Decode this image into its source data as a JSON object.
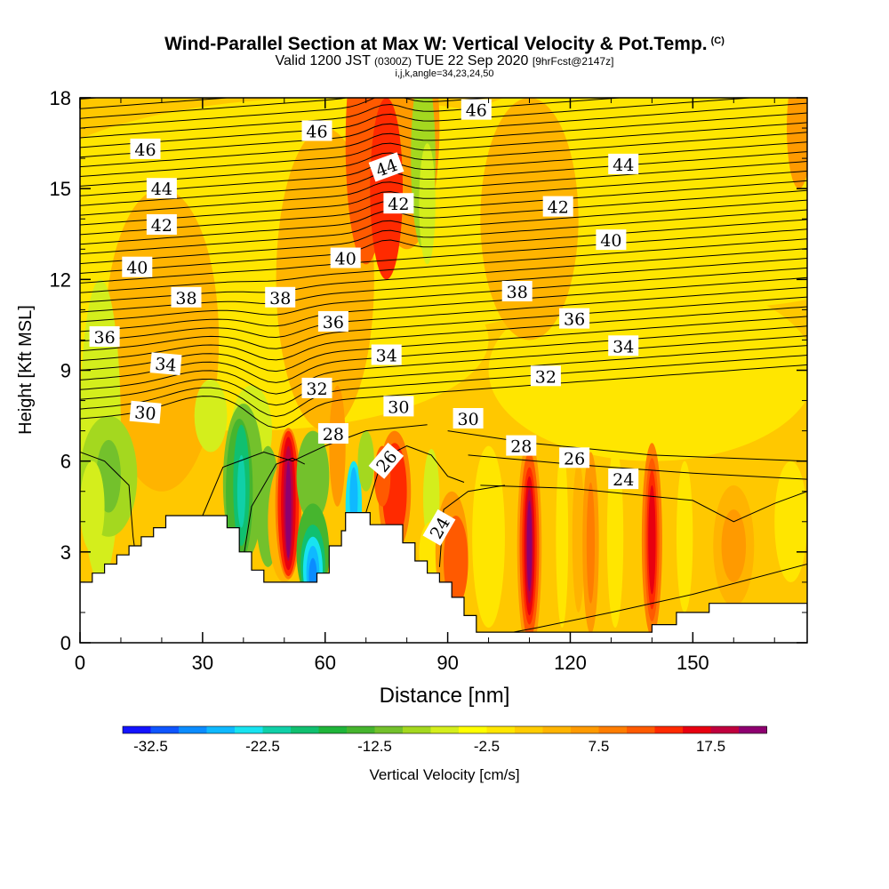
{
  "header": {
    "title": "Wind-Parallel Section at Max W: Vertical Velocity & Pot.Temp.",
    "copyright": "(C)",
    "valid_prefix": "Valid 1200 JST",
    "valid_utc": "(0300Z)",
    "valid_date": "TUE 22 Sep 2020",
    "forecast": "[9hrFcst@2147z]",
    "indices": "i,j,k,angle=34,23,24,50"
  },
  "chart_data": {
    "type": "contour-section",
    "xlabel": "Distance [nm]",
    "ylabel": "Height [Kft MSL]",
    "xlim": [
      0,
      178
    ],
    "ylim": [
      0,
      18
    ],
    "x_ticks": [
      0,
      30,
      60,
      90,
      120,
      150
    ],
    "y_ticks": [
      0,
      3,
      6,
      9,
      12,
      15,
      18
    ],
    "colorbar": {
      "label": "Vertical Velocity [cm/s]",
      "tick_labels": [
        "-32.5",
        "-22.5",
        "-12.5",
        "-2.5",
        "7.5",
        "17.5"
      ],
      "tick_values": [
        -32.5,
        -22.5,
        -12.5,
        -2.5,
        7.5,
        17.5
      ],
      "range": [
        -35,
        22.5
      ],
      "step": 2.5,
      "colors": [
        "#1414ff",
        "#0f55ff",
        "#0b8cff",
        "#0fb9ff",
        "#18e3f0",
        "#10d0a8",
        "#10c070",
        "#1fb53a",
        "#46b52e",
        "#73c12c",
        "#a4d81f",
        "#d4ee1c",
        "#ffff00",
        "#ffe600",
        "#ffcc00",
        "#ffb400",
        "#ff9a00",
        "#ff7d00",
        "#ff5a00",
        "#ff2a00",
        "#e80010",
        "#c0003e",
        "#8e0070"
      ]
    },
    "theta_contour_labels": [
      {
        "text": "46",
        "x": 16,
        "y": 16.3,
        "angle": 0
      },
      {
        "text": "46",
        "x": 58,
        "y": 16.9,
        "angle": 0
      },
      {
        "text": "46",
        "x": 97,
        "y": 17.6,
        "angle": 0
      },
      {
        "text": "44",
        "x": 20,
        "y": 15.0,
        "angle": 0
      },
      {
        "text": "44",
        "x": 75,
        "y": 15.7,
        "angle": -20
      },
      {
        "text": "44",
        "x": 133,
        "y": 15.8,
        "angle": 0
      },
      {
        "text": "42",
        "x": 20,
        "y": 13.8,
        "angle": 0
      },
      {
        "text": "42",
        "x": 78,
        "y": 14.5,
        "angle": 0
      },
      {
        "text": "42",
        "x": 117,
        "y": 14.4,
        "angle": 0
      },
      {
        "text": "40",
        "x": 14,
        "y": 12.4,
        "angle": 0
      },
      {
        "text": "40",
        "x": 65,
        "y": 12.7,
        "angle": 0
      },
      {
        "text": "40",
        "x": 130,
        "y": 13.3,
        "angle": 0
      },
      {
        "text": "38",
        "x": 26,
        "y": 11.4,
        "angle": 0
      },
      {
        "text": "38",
        "x": 49,
        "y": 11.4,
        "angle": 0
      },
      {
        "text": "38",
        "x": 107,
        "y": 11.6,
        "angle": 0
      },
      {
        "text": "36",
        "x": 6,
        "y": 10.1,
        "angle": 0
      },
      {
        "text": "36",
        "x": 62,
        "y": 10.6,
        "angle": 0
      },
      {
        "text": "36",
        "x": 121,
        "y": 10.7,
        "angle": 0
      },
      {
        "text": "34",
        "x": 21,
        "y": 9.2,
        "angle": 5
      },
      {
        "text": "34",
        "x": 75,
        "y": 9.5,
        "angle": 0
      },
      {
        "text": "34",
        "x": 133,
        "y": 9.8,
        "angle": 0
      },
      {
        "text": "32",
        "x": 58,
        "y": 8.4,
        "angle": 0
      },
      {
        "text": "32",
        "x": 114,
        "y": 8.8,
        "angle": 0
      },
      {
        "text": "30",
        "x": 16,
        "y": 7.6,
        "angle": 5
      },
      {
        "text": "30",
        "x": 78,
        "y": 7.8,
        "angle": 0
      },
      {
        "text": "30",
        "x": 95,
        "y": 7.4,
        "angle": 0
      },
      {
        "text": "28",
        "x": 62,
        "y": 6.9,
        "angle": 0
      },
      {
        "text": "28",
        "x": 108,
        "y": 6.5,
        "angle": 0
      },
      {
        "text": "26",
        "x": 75,
        "y": 6.0,
        "angle": -50
      },
      {
        "text": "26",
        "x": 121,
        "y": 6.1,
        "angle": 0
      },
      {
        "text": "24",
        "x": 88,
        "y": 3.8,
        "angle": -60
      },
      {
        "text": "24",
        "x": 133,
        "y": 5.4,
        "angle": 0
      }
    ]
  }
}
